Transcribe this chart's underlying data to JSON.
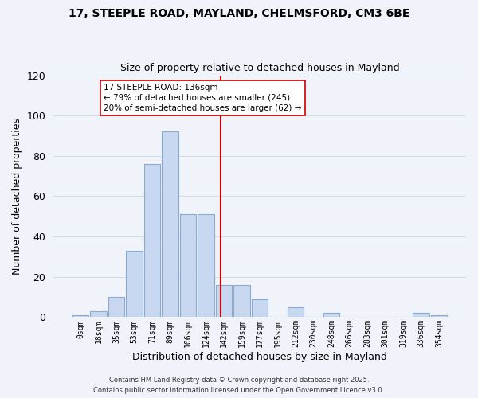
{
  "title_line1": "17, STEEPLE ROAD, MAYLAND, CHELMSFORD, CM3 6BE",
  "title_line2": "Size of property relative to detached houses in Mayland",
  "xlabel": "Distribution of detached houses by size in Mayland",
  "ylabel": "Number of detached properties",
  "bar_labels": [
    "0sqm",
    "18sqm",
    "35sqm",
    "53sqm",
    "71sqm",
    "89sqm",
    "106sqm",
    "124sqm",
    "142sqm",
    "159sqm",
    "177sqm",
    "195sqm",
    "212sqm",
    "230sqm",
    "248sqm",
    "266sqm",
    "283sqm",
    "301sqm",
    "319sqm",
    "336sqm",
    "354sqm"
  ],
  "bar_values": [
    1,
    3,
    10,
    33,
    76,
    92,
    51,
    51,
    16,
    16,
    9,
    0,
    5,
    0,
    2,
    0,
    0,
    0,
    0,
    2,
    1
  ],
  "bar_color": "#c8d8f0",
  "bar_edge_color": "#8aabcf",
  "vline_color": "#cc0000",
  "vline_x": 7.82,
  "annotation_box_text": "17 STEEPLE ROAD: 136sqm\n← 79% of detached houses are smaller (245)\n20% of semi-detached houses are larger (62) →",
  "grid_color": "#d0dce8",
  "background_color": "#f0f4fa",
  "ylim": [
    0,
    120
  ],
  "yticks": [
    0,
    20,
    40,
    60,
    80,
    100,
    120
  ],
  "footer_line1": "Contains HM Land Registry data © Crown copyright and database right 2025.",
  "footer_line2": "Contains public sector information licensed under the Open Government Licence v3.0."
}
